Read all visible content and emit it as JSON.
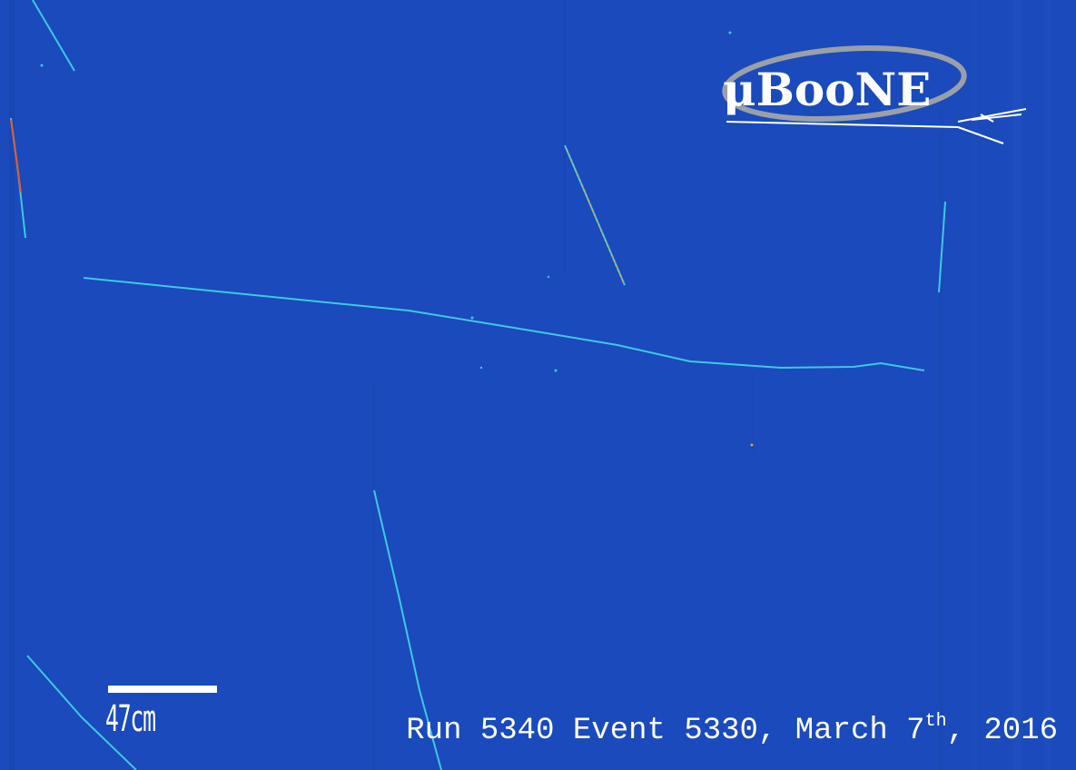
{
  "logo": {
    "text": "μBooNE"
  },
  "scale": {
    "label": "47cm"
  },
  "caption": {
    "prefix": "Run 5340 Event 5330, March 7",
    "superscript": "th",
    "suffix": ", 2016"
  },
  "colors": {
    "background": "#1a4abb",
    "track": "#3ec8e6",
    "track_high": "#f2a23a",
    "text": "#ffffff"
  }
}
